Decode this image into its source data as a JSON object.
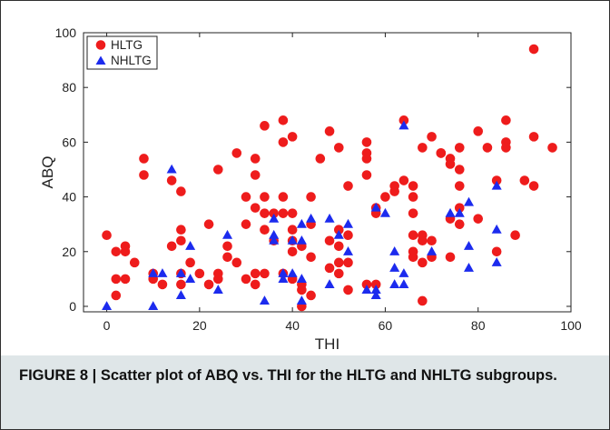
{
  "chart_data": {
    "type": "scatter",
    "xlabel": "THI",
    "ylabel": "ABQ",
    "xlim": [
      -5,
      100
    ],
    "ylim": [
      -2,
      100
    ],
    "xticks": [
      0,
      20,
      40,
      60,
      80,
      100
    ],
    "yticks": [
      0,
      20,
      40,
      60,
      80,
      100
    ],
    "grid": false,
    "legend_position": "top-left",
    "series": [
      {
        "name": "HLTG",
        "marker": "circle",
        "color": "#ee1c1c",
        "points": [
          [
            0,
            26
          ],
          [
            2,
            4
          ],
          [
            2,
            10
          ],
          [
            2,
            20
          ],
          [
            4,
            10
          ],
          [
            4,
            20
          ],
          [
            4,
            22
          ],
          [
            6,
            16
          ],
          [
            8,
            48
          ],
          [
            8,
            54
          ],
          [
            10,
            12
          ],
          [
            10,
            10
          ],
          [
            12,
            8
          ],
          [
            14,
            22
          ],
          [
            14,
            46
          ],
          [
            16,
            42
          ],
          [
            16,
            28
          ],
          [
            16,
            24
          ],
          [
            16,
            12
          ],
          [
            16,
            8
          ],
          [
            18,
            16
          ],
          [
            20,
            12
          ],
          [
            22,
            30
          ],
          [
            22,
            8
          ],
          [
            24,
            50
          ],
          [
            24,
            12
          ],
          [
            24,
            10
          ],
          [
            26,
            18
          ],
          [
            26,
            22
          ],
          [
            28,
            56
          ],
          [
            28,
            16
          ],
          [
            30,
            40
          ],
          [
            30,
            30
          ],
          [
            30,
            10
          ],
          [
            32,
            54
          ],
          [
            32,
            48
          ],
          [
            32,
            36
          ],
          [
            32,
            8
          ],
          [
            32,
            12
          ],
          [
            34,
            66
          ],
          [
            34,
            40
          ],
          [
            34,
            34
          ],
          [
            34,
            28
          ],
          [
            34,
            12
          ],
          [
            36,
            24
          ],
          [
            36,
            34
          ],
          [
            38,
            68
          ],
          [
            38,
            60
          ],
          [
            38,
            40
          ],
          [
            38,
            34
          ],
          [
            38,
            12
          ],
          [
            40,
            62
          ],
          [
            40,
            34
          ],
          [
            40,
            28
          ],
          [
            40,
            24
          ],
          [
            40,
            20
          ],
          [
            40,
            10
          ],
          [
            42,
            6
          ],
          [
            42,
            0
          ],
          [
            42,
            8
          ],
          [
            42,
            22
          ],
          [
            44,
            40
          ],
          [
            44,
            30
          ],
          [
            44,
            18
          ],
          [
            44,
            4
          ],
          [
            46,
            54
          ],
          [
            48,
            64
          ],
          [
            48,
            24
          ],
          [
            48,
            14
          ],
          [
            50,
            58
          ],
          [
            50,
            28
          ],
          [
            50,
            22
          ],
          [
            50,
            16
          ],
          [
            50,
            12
          ],
          [
            52,
            44
          ],
          [
            52,
            26
          ],
          [
            52,
            16
          ],
          [
            52,
            6
          ],
          [
            56,
            60
          ],
          [
            56,
            56
          ],
          [
            56,
            54
          ],
          [
            56,
            48
          ],
          [
            56,
            8
          ],
          [
            58,
            8
          ],
          [
            58,
            34
          ],
          [
            58,
            36
          ],
          [
            60,
            40
          ],
          [
            62,
            42
          ],
          [
            62,
            44
          ],
          [
            64,
            46
          ],
          [
            64,
            68
          ],
          [
            66,
            44
          ],
          [
            66,
            40
          ],
          [
            66,
            34
          ],
          [
            66,
            26
          ],
          [
            66,
            20
          ],
          [
            66,
            18
          ],
          [
            68,
            58
          ],
          [
            68,
            26
          ],
          [
            68,
            24
          ],
          [
            68,
            16
          ],
          [
            68,
            2
          ],
          [
            70,
            62
          ],
          [
            70,
            24
          ],
          [
            70,
            18
          ],
          [
            72,
            56
          ],
          [
            72,
            56
          ],
          [
            74,
            54
          ],
          [
            74,
            52
          ],
          [
            74,
            32
          ],
          [
            74,
            18
          ],
          [
            76,
            58
          ],
          [
            76,
            50
          ],
          [
            76,
            44
          ],
          [
            76,
            36
          ],
          [
            76,
            30
          ],
          [
            80,
            64
          ],
          [
            80,
            32
          ],
          [
            82,
            58
          ],
          [
            84,
            46
          ],
          [
            84,
            20
          ],
          [
            86,
            68
          ],
          [
            86,
            60
          ],
          [
            86,
            58
          ],
          [
            88,
            26
          ],
          [
            90,
            46
          ],
          [
            92,
            94
          ],
          [
            92,
            62
          ],
          [
            92,
            44
          ],
          [
            96,
            58
          ]
        ]
      },
      {
        "name": "NHLTG",
        "marker": "triangle",
        "color": "#1c2bee",
        "points": [
          [
            0,
            0
          ],
          [
            10,
            0
          ],
          [
            10,
            12
          ],
          [
            12,
            12
          ],
          [
            14,
            50
          ],
          [
            16,
            4
          ],
          [
            16,
            12
          ],
          [
            18,
            10
          ],
          [
            18,
            22
          ],
          [
            24,
            6
          ],
          [
            26,
            26
          ],
          [
            34,
            2
          ],
          [
            36,
            24
          ],
          [
            36,
            26
          ],
          [
            36,
            32
          ],
          [
            38,
            10
          ],
          [
            38,
            12
          ],
          [
            40,
            12
          ],
          [
            40,
            24
          ],
          [
            42,
            2
          ],
          [
            42,
            10
          ],
          [
            42,
            24
          ],
          [
            42,
            30
          ],
          [
            44,
            32
          ],
          [
            48,
            8
          ],
          [
            48,
            32
          ],
          [
            50,
            26
          ],
          [
            52,
            30
          ],
          [
            52,
            20
          ],
          [
            56,
            6
          ],
          [
            58,
            4
          ],
          [
            58,
            6
          ],
          [
            58,
            36
          ],
          [
            60,
            34
          ],
          [
            62,
            8
          ],
          [
            62,
            14
          ],
          [
            62,
            20
          ],
          [
            64,
            12
          ],
          [
            64,
            8
          ],
          [
            64,
            66
          ],
          [
            70,
            20
          ],
          [
            74,
            34
          ],
          [
            76,
            34
          ],
          [
            78,
            14
          ],
          [
            78,
            22
          ],
          [
            78,
            38
          ],
          [
            84,
            44
          ],
          [
            84,
            28
          ],
          [
            84,
            16
          ]
        ]
      }
    ]
  },
  "caption": {
    "text": "FIGURE 8 | Scatter plot of ABQ vs. THI for the HLTG and NHLTG subgroups."
  }
}
